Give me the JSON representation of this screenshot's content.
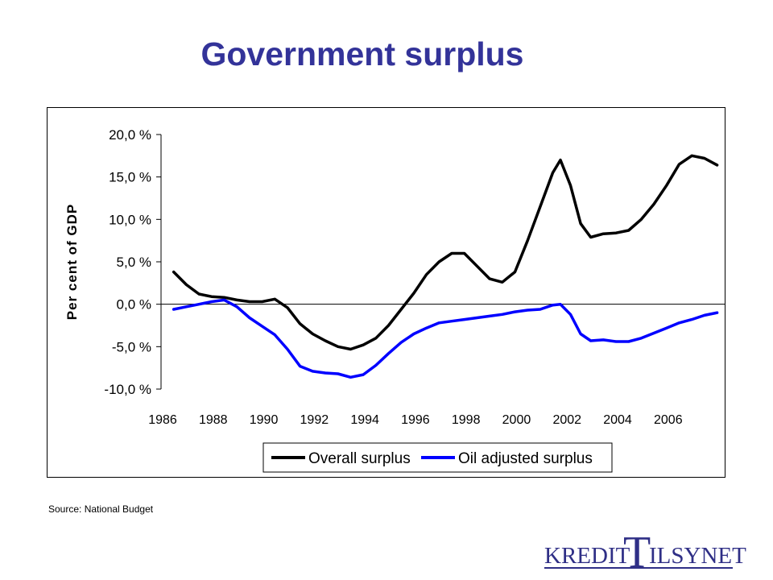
{
  "title": "Government surplus",
  "source": "Source: National Budget",
  "logo": {
    "text": "KREDITTILSYNET",
    "part1": "KREDIT",
    "big_letter": "T",
    "part2": "ILSYNET",
    "color": "#2f2f86"
  },
  "colors": {
    "title": "#333399",
    "overall": "#000000",
    "oil_adjusted": "#0000ff"
  },
  "chart_data": {
    "type": "line",
    "title": "",
    "xlabel": "",
    "ylabel": "Per cent of GDP",
    "xlim": [
      1986,
      2008.3
    ],
    "ylim": [
      -10,
      20
    ],
    "x_ticks": [
      1986,
      1988,
      1990,
      1992,
      1994,
      1996,
      1998,
      2000,
      2002,
      2004,
      2006
    ],
    "x_tick_labels": [
      "1986",
      "1988",
      "1990",
      "1992",
      "1994",
      "1996",
      "1998",
      "2000",
      "2002",
      "2004",
      "2006"
    ],
    "y_ticks": [
      20,
      15,
      10,
      5,
      0,
      -5,
      -10
    ],
    "y_tick_labels": [
      "20,0 %",
      "15,0 %",
      "10,0 %",
      "5,0 %",
      "0,0 %",
      "-5,0 %",
      "-10,0 %"
    ],
    "grid": false,
    "legend_position": "bottom",
    "series": [
      {
        "name": "Overall surplus",
        "color": "#000000",
        "points": [
          [
            1986.5,
            3.8
          ],
          [
            1987.0,
            2.3
          ],
          [
            1987.5,
            1.2
          ],
          [
            1988.0,
            0.9
          ],
          [
            1988.5,
            0.8
          ],
          [
            1989.0,
            0.5
          ],
          [
            1989.5,
            0.3
          ],
          [
            1990.0,
            0.3
          ],
          [
            1990.5,
            0.6
          ],
          [
            1991.0,
            -0.4
          ],
          [
            1991.5,
            -2.3
          ],
          [
            1992.0,
            -3.5
          ],
          [
            1992.5,
            -4.3
          ],
          [
            1993.0,
            -5.0
          ],
          [
            1993.5,
            -5.3
          ],
          [
            1994.0,
            -4.8
          ],
          [
            1994.5,
            -4.0
          ],
          [
            1995.0,
            -2.5
          ],
          [
            1995.5,
            -0.6
          ],
          [
            1996.0,
            1.3
          ],
          [
            1996.5,
            3.5
          ],
          [
            1997.0,
            5.0
          ],
          [
            1997.5,
            6.0
          ],
          [
            1998.0,
            6.0
          ],
          [
            1998.5,
            4.5
          ],
          [
            1999.0,
            3.0
          ],
          [
            1999.5,
            2.6
          ],
          [
            2000.0,
            3.8
          ],
          [
            2000.5,
            7.5
          ],
          [
            2001.0,
            11.5
          ],
          [
            2001.5,
            15.5
          ],
          [
            2001.8,
            17.0
          ],
          [
            2002.2,
            14.0
          ],
          [
            2002.6,
            9.5
          ],
          [
            2003.0,
            7.9
          ],
          [
            2003.5,
            8.3
          ],
          [
            2004.0,
            8.4
          ],
          [
            2004.5,
            8.7
          ],
          [
            2005.0,
            10.0
          ],
          [
            2005.5,
            11.8
          ],
          [
            2006.0,
            14.0
          ],
          [
            2006.5,
            16.5
          ],
          [
            2007.0,
            17.5
          ],
          [
            2007.5,
            17.2
          ],
          [
            2008.0,
            16.4
          ]
        ]
      },
      {
        "name": "Oil adjusted surplus",
        "color": "#0000ff",
        "points": [
          [
            1986.5,
            -0.6
          ],
          [
            1987.0,
            -0.3
          ],
          [
            1987.5,
            0.0
          ],
          [
            1988.0,
            0.3
          ],
          [
            1988.5,
            0.5
          ],
          [
            1989.0,
            -0.3
          ],
          [
            1989.5,
            -1.6
          ],
          [
            1990.0,
            -2.6
          ],
          [
            1990.5,
            -3.6
          ],
          [
            1991.0,
            -5.3
          ],
          [
            1991.5,
            -7.3
          ],
          [
            1992.0,
            -7.9
          ],
          [
            1992.5,
            -8.1
          ],
          [
            1993.0,
            -8.2
          ],
          [
            1993.5,
            -8.6
          ],
          [
            1994.0,
            -8.3
          ],
          [
            1994.5,
            -7.2
          ],
          [
            1995.0,
            -5.8
          ],
          [
            1995.5,
            -4.5
          ],
          [
            1996.0,
            -3.5
          ],
          [
            1996.5,
            -2.8
          ],
          [
            1997.0,
            -2.2
          ],
          [
            1997.5,
            -2.0
          ],
          [
            1998.0,
            -1.8
          ],
          [
            1998.5,
            -1.6
          ],
          [
            1999.0,
            -1.4
          ],
          [
            1999.5,
            -1.2
          ],
          [
            2000.0,
            -0.9
          ],
          [
            2000.5,
            -0.7
          ],
          [
            2001.0,
            -0.6
          ],
          [
            2001.5,
            -0.1
          ],
          [
            2001.8,
            0.0
          ],
          [
            2002.2,
            -1.2
          ],
          [
            2002.6,
            -3.5
          ],
          [
            2003.0,
            -4.3
          ],
          [
            2003.5,
            -4.2
          ],
          [
            2004.0,
            -4.4
          ],
          [
            2004.5,
            -4.4
          ],
          [
            2005.0,
            -4.0
          ],
          [
            2005.5,
            -3.4
          ],
          [
            2006.0,
            -2.8
          ],
          [
            2006.5,
            -2.2
          ],
          [
            2007.0,
            -1.8
          ],
          [
            2007.5,
            -1.3
          ],
          [
            2008.0,
            -1.0
          ]
        ]
      }
    ]
  }
}
